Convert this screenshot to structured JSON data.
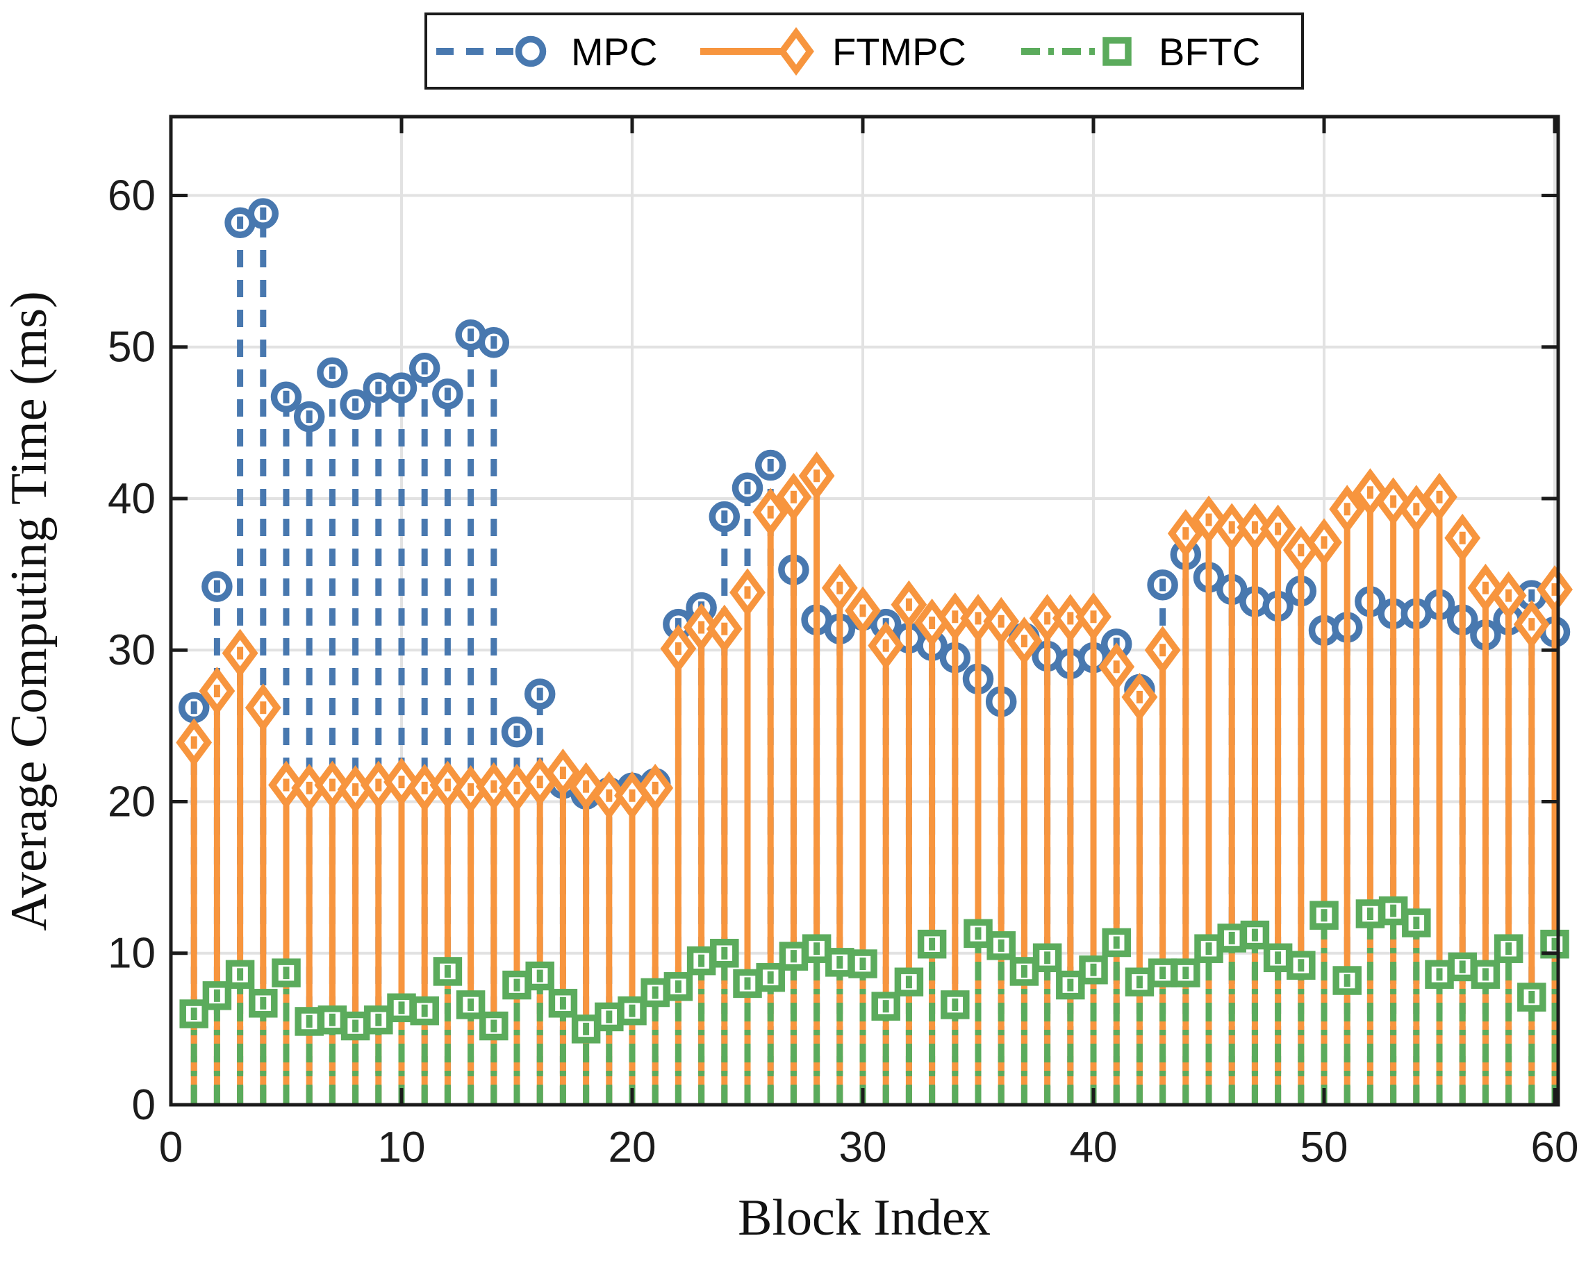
{
  "chart_data": {
    "type": "stem",
    "title": "",
    "xlabel": "Block Index",
    "ylabel": "Average Computing Time (ms)",
    "x_ticks": [
      0,
      10,
      20,
      30,
      40,
      50,
      60
    ],
    "y_ticks": [
      0,
      10,
      20,
      30,
      40,
      50,
      60
    ],
    "xlim": [
      0,
      60.15
    ],
    "ylim": [
      0,
      65.2
    ],
    "grid": true,
    "legend_position": "top-center",
    "x": [
      1,
      2,
      3,
      4,
      5,
      6,
      7,
      8,
      9,
      10,
      11,
      12,
      13,
      14,
      15,
      16,
      17,
      18,
      19,
      20,
      21,
      22,
      23,
      24,
      25,
      26,
      27,
      28,
      29,
      30,
      31,
      32,
      33,
      34,
      35,
      36,
      37,
      38,
      39,
      40,
      41,
      42,
      43,
      44,
      45,
      46,
      47,
      48,
      49,
      50,
      51,
      52,
      53,
      54,
      55,
      56,
      57,
      58,
      59,
      60
    ],
    "series": [
      {
        "name": "MPC",
        "color": "#4878af",
        "line_style": "dashed",
        "marker": "circle",
        "values": [
          26.2,
          34.2,
          58.2,
          58.8,
          46.7,
          45.4,
          48.3,
          46.2,
          47.3,
          47.3,
          48.6,
          46.9,
          50.8,
          50.3,
          24.6,
          27.1,
          21.2,
          20.5,
          20.6,
          20.9,
          21.2,
          31.7,
          32.8,
          38.8,
          40.7,
          42.2,
          35.3,
          32.0,
          31.4,
          32.3,
          31.7,
          30.8,
          30.3,
          29.5,
          28.1,
          26.6,
          30.8,
          29.6,
          29.1,
          29.5,
          30.4,
          27.4,
          34.3,
          36.3,
          34.8,
          34.0,
          33.2,
          32.9,
          33.9,
          31.3,
          31.5,
          33.2,
          32.4,
          32.4,
          33.0,
          32.0,
          31.0,
          32.0,
          33.6,
          31.2
        ]
      },
      {
        "name": "FTMPC",
        "color": "#f7953e",
        "line_style": "solid",
        "marker": "diamond",
        "values": [
          23.9,
          27.3,
          29.8,
          26.2,
          21.1,
          20.9,
          21.1,
          20.8,
          21.1,
          21.3,
          20.9,
          21.1,
          20.8,
          21.0,
          20.9,
          21.3,
          21.9,
          21.0,
          20.4,
          20.4,
          20.9,
          30.1,
          31.5,
          31.4,
          33.8,
          39.1,
          40.1,
          41.5,
          34.1,
          32.6,
          30.3,
          33.0,
          31.8,
          32.2,
          32.1,
          31.9,
          30.6,
          32.1,
          32.1,
          32.2,
          28.9,
          26.9,
          30.0,
          37.7,
          38.6,
          38.1,
          38.1,
          38.0,
          36.6,
          37.1,
          39.3,
          40.4,
          39.8,
          39.3,
          40.1,
          37.4,
          34.1,
          33.6,
          31.7,
          34.0
        ]
      },
      {
        "name": "BFTC",
        "color": "#5bab5c",
        "line_style": "dash-dot",
        "marker": "square",
        "values": [
          6.0,
          7.2,
          8.6,
          6.7,
          8.7,
          5.5,
          5.6,
          5.2,
          5.6,
          6.4,
          6.2,
          8.8,
          6.6,
          5.2,
          7.9,
          8.5,
          6.7,
          5.0,
          5.8,
          6.2,
          7.4,
          7.8,
          9.5,
          10.0,
          8.0,
          8.4,
          9.8,
          10.3,
          9.4,
          9.3,
          6.5,
          8.1,
          10.6,
          6.6,
          11.3,
          10.5,
          8.8,
          9.7,
          7.9,
          8.9,
          10.7,
          8.1,
          8.7,
          8.7,
          10.3,
          11.0,
          11.2,
          9.7,
          9.2,
          12.5,
          8.2,
          12.6,
          12.8,
          12.0,
          8.6,
          9.1,
          8.6,
          10.3,
          7.1,
          10.6
        ]
      }
    ]
  },
  "colors": {
    "background": "#ffffff",
    "axis": "#1b1b1b",
    "grid": "#e2e2e2",
    "tick_text": "#1c1c1c",
    "legend_border": "#1b1b1b"
  }
}
